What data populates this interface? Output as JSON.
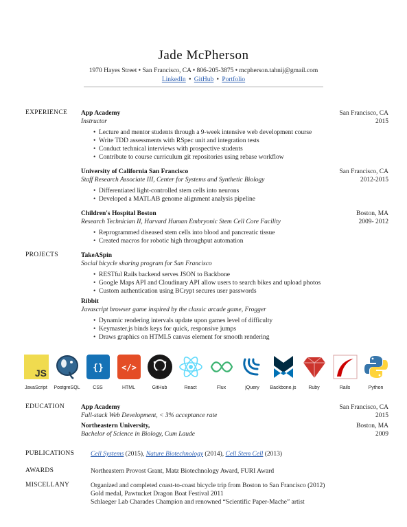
{
  "header": {
    "name": "Jade McPherson",
    "contact": "1970 Hayes Street • San Francisco, CA • 806-205-3875 • mcpherson.tahnij@gmail.com",
    "links": [
      "LinkedIn",
      "GitHub",
      "Portfolio"
    ],
    "link_sep": "•"
  },
  "experience": {
    "label": "EXPERIENCE",
    "entries": [
      {
        "org": "App Academy",
        "location": "San Francisco, CA",
        "role": "Instructor",
        "dates": "2015",
        "bullets": [
          "Lecture and mentor students through a 9-week intensive web development course",
          "Write TDD assessments with RSpec unit and integration tests",
          "Conduct technical interviews with prospective students",
          "Contribute to course curriculum git repositories using rebase workflow"
        ]
      },
      {
        "org": "University of California San Francisco",
        "location": "San Francisco, CA",
        "role": "Staff Research Associate III, Center for Systems and Synthetic Biology",
        "dates": "2012-2015",
        "bullets": [
          "Differentiated light-controlled stem cells into neurons",
          "Developed a MATLAB genome alignment analysis pipeline"
        ]
      },
      {
        "org": "Children's Hospital Boston",
        "location": "Boston, MA",
        "role": "Research Technician II, Harvard Human Embryonic Stem Cell Core Facility",
        "dates": "2009- 2012",
        "bullets": [
          "Reprogrammed diseased stem cells into blood and pancreatic tissue",
          "Created macros for robotic high throughput automation"
        ]
      }
    ]
  },
  "projects": {
    "label": "PROJECTS",
    "entries": [
      {
        "name": "TakeASpin",
        "desc": "Social bicycle sharing program for San Francisco",
        "bullets": [
          "RESTful Rails backend serves JSON to Backbone",
          "Google Maps API and Cloudinary API allow users to search bikes and upload photos",
          "Custom authentication using BCrypt secures user passwords"
        ]
      },
      {
        "name": "Ribbit",
        "desc": "Javascript browser game inspired by the classic arcade game, Frogger",
        "bullets": [
          "Dynamic rendering intervals update upon games level of difficulty",
          "Keymaster.js binds keys for quick, responsive jumps",
          "Draws graphics on HTML5 canvas element for smooth rendering"
        ]
      }
    ]
  },
  "skills": [
    {
      "name": "JavaScript",
      "icon": "javascript-icon",
      "color": "#f0db4f"
    },
    {
      "name": "PostgreSQL",
      "icon": "postgresql-icon",
      "color": "#336791"
    },
    {
      "name": "CSS",
      "icon": "css-icon",
      "color": "#1572b6"
    },
    {
      "name": "HTML",
      "icon": "html-icon",
      "color": "#e44d26"
    },
    {
      "name": "GitHub",
      "icon": "github-icon",
      "color": "#181717"
    },
    {
      "name": "React",
      "icon": "react-icon",
      "color": "#61dafb"
    },
    {
      "name": "Flux",
      "icon": "flux-icon",
      "color": "#3cb371"
    },
    {
      "name": "jQuery",
      "icon": "jquery-icon",
      "color": "#0769ad"
    },
    {
      "name": "Backbone.js",
      "icon": "backbone-icon",
      "color": "#0071b5"
    },
    {
      "name": "Ruby",
      "icon": "ruby-icon",
      "color": "#cc342d"
    },
    {
      "name": "Rails",
      "icon": "rails-icon",
      "color": "#cc0000"
    },
    {
      "name": "Python",
      "icon": "python-icon",
      "color": "#3776ab"
    }
  ],
  "education": {
    "label": "EDUCATION",
    "entries": [
      {
        "org": "App Academy",
        "location": "San Francisco, CA",
        "desc": "Full-stack Web Development, < 3% acceptance rate",
        "dates": "2015"
      },
      {
        "org": "Northeastern University,",
        "location": "Boston, MA",
        "desc": "Bachelor of Science in Biology, Cum Laude",
        "dates": "2009"
      }
    ]
  },
  "publications": {
    "label": "PUBLICATIONS",
    "items": [
      {
        "journal": "Cell Systems",
        "year": " (2015), "
      },
      {
        "journal": "Nature Biotechnology",
        "year": " (2014), "
      },
      {
        "journal": "Cell Stem Cell",
        "year": " (2013)"
      }
    ]
  },
  "awards": {
    "label": "AWARDS",
    "text": "Northeastern Provost Grant, Matz Biotechnology Award, FURI Award"
  },
  "misc": {
    "label": "MISCELLANY",
    "lines": [
      "Organized and completed coast-to-coast bicycle trip from Boston to San Francisco (2012)",
      "Gold medal, Pawtucket Dragon Boat Festival 2011",
      "Schlaeger Lab Charades Champion and renowned “Scientific Paper-Mache” artist"
    ]
  }
}
